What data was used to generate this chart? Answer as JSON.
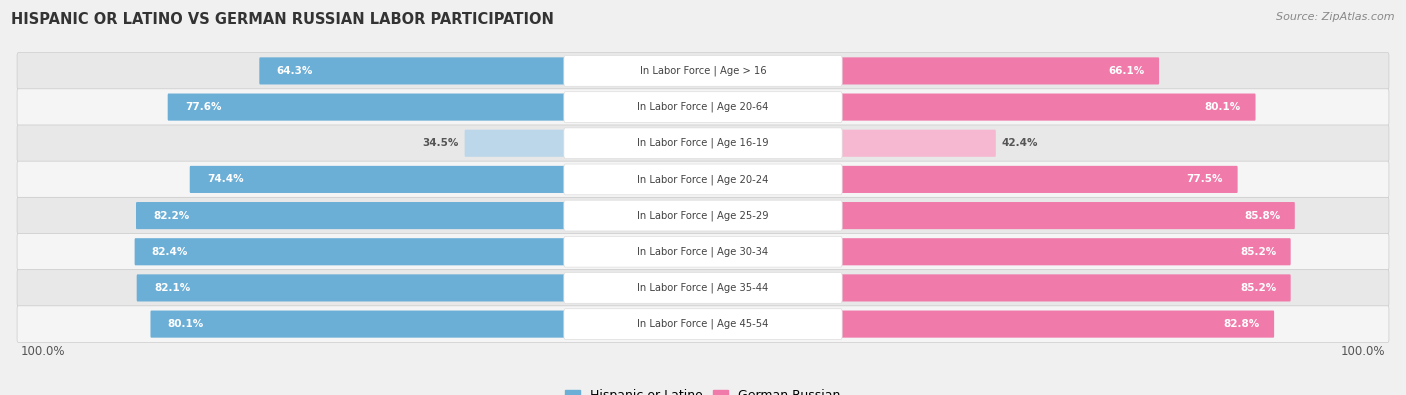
{
  "title": "HISPANIC OR LATINO VS GERMAN RUSSIAN LABOR PARTICIPATION",
  "source": "Source: ZipAtlas.com",
  "categories": [
    "In Labor Force | Age > 16",
    "In Labor Force | Age 20-64",
    "In Labor Force | Age 16-19",
    "In Labor Force | Age 20-24",
    "In Labor Force | Age 25-29",
    "In Labor Force | Age 30-34",
    "In Labor Force | Age 35-44",
    "In Labor Force | Age 45-54"
  ],
  "hispanic_values": [
    64.3,
    77.6,
    34.5,
    74.4,
    82.2,
    82.4,
    82.1,
    80.1
  ],
  "german_values": [
    66.1,
    80.1,
    42.4,
    77.5,
    85.8,
    85.2,
    85.2,
    82.8
  ],
  "hispanic_color": "#6baed6",
  "hispanic_light_color": "#bdd7ea",
  "german_color": "#f07aaa",
  "german_light_color": "#f5b8d0",
  "background_color": "#f0f0f0",
  "row_bg_color": "#e8e8e8",
  "row_bg_alt": "#f5f5f5",
  "label_bg": "#ffffff",
  "max_value": 100.0,
  "legend_hispanic": "Hispanic or Latino",
  "legend_german": "German Russian",
  "light_threshold": 60
}
